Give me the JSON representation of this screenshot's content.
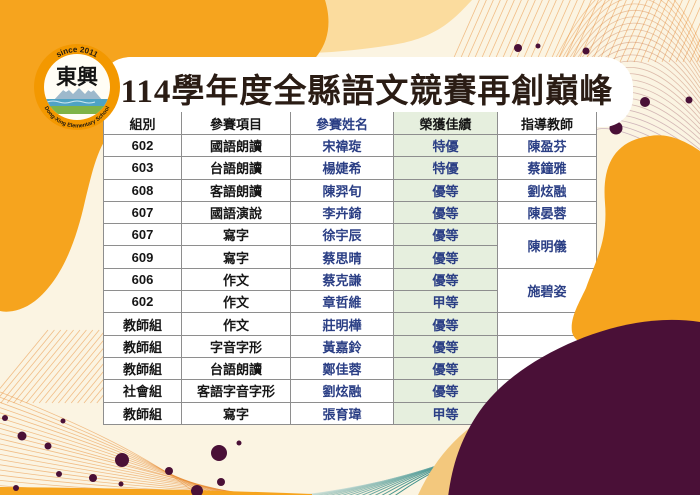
{
  "logo": {
    "since": "since 2011",
    "school_zh": "東興",
    "school_en": "Dong-Xing Elementary School"
  },
  "title": "114學年度全縣語文競賽再創巔峰",
  "table": {
    "headers": [
      "組別",
      "參賽項目",
      "參賽姓名",
      "榮獲佳績",
      "指導教師"
    ],
    "rows": [
      {
        "group": "602",
        "item": "國語朗讀",
        "name": "宋禕琁",
        "award": "特優",
        "teacher": "陳盈芬",
        "teacher_rowspan": 1
      },
      {
        "group": "603",
        "item": "台語朗讀",
        "name": "楊婕希",
        "award": "特優",
        "teacher": "蔡鐘雅",
        "teacher_rowspan": 1
      },
      {
        "group": "608",
        "item": "客語朗讀",
        "name": "陳羿旬",
        "award": "優等",
        "teacher": "劉炫融",
        "teacher_rowspan": 1
      },
      {
        "group": "607",
        "item": "國語演說",
        "name": "李卉錡",
        "award": "優等",
        "teacher": "陳晏蓉",
        "teacher_rowspan": 1
      },
      {
        "group": "607",
        "item": "寫字",
        "name": "徐宇辰",
        "award": "優等",
        "teacher": "陳明儀",
        "teacher_rowspan": 2
      },
      {
        "group": "609",
        "item": "寫字",
        "name": "蔡思晴",
        "award": "優等",
        "teacher": null
      },
      {
        "group": "606",
        "item": "作文",
        "name": "蔡克謙",
        "award": "優等",
        "teacher": "施碧姿",
        "teacher_rowspan": 2
      },
      {
        "group": "602",
        "item": "作文",
        "name": "章哲維",
        "award": "甲等",
        "teacher": null
      },
      {
        "group": "教師組",
        "item": "作文",
        "name": "莊明樺",
        "award": "優等",
        "teacher": "",
        "teacher_rowspan": 1
      },
      {
        "group": "教師組",
        "item": "字音字形",
        "name": "黃嘉鈴",
        "award": "優等",
        "teacher": "",
        "teacher_rowspan": 1
      },
      {
        "group": "教師組",
        "item": "台語朗讀",
        "name": "鄭佳蓉",
        "award": "優等",
        "teacher": "",
        "teacher_rowspan": 1
      },
      {
        "group": "社會組",
        "item": "客語字音字形",
        "name": "劉炫融",
        "award": "優等",
        "teacher": "",
        "teacher_rowspan": 1
      },
      {
        "group": "教師組",
        "item": "寫字",
        "name": "張育瑋",
        "award": "甲等",
        "teacher": "",
        "teacher_rowspan": 1
      }
    ]
  },
  "colors": {
    "orange": "#F6A41E",
    "peach": "#FBDC9E",
    "cream": "#FBF4E2",
    "tan": "#F3C87D",
    "purple": "#4A1037",
    "teal": "#2A8A84",
    "navy_text": "#2B3F85",
    "award_cell_green": "#E6EFDE",
    "title_ink": "#2A1C14"
  }
}
